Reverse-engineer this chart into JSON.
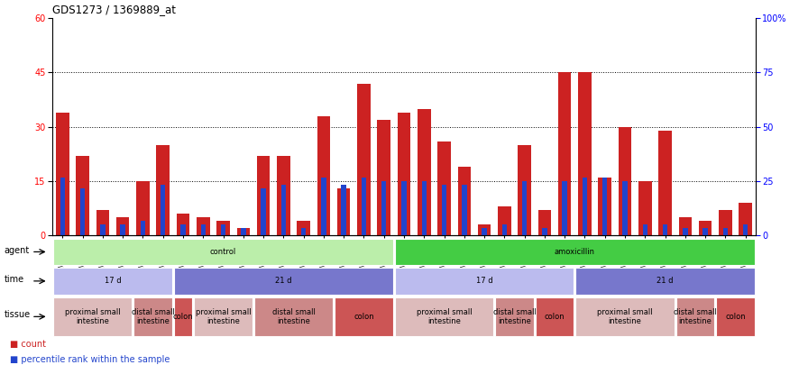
{
  "title": "GDS1273 / 1369889_at",
  "samples": [
    "GSM42559",
    "GSM42561",
    "GSM42563",
    "GSM42553",
    "GSM42555",
    "GSM42557",
    "GSM42548",
    "GSM42550",
    "GSM42560",
    "GSM42562",
    "GSM42564",
    "GSM42554",
    "GSM42556",
    "GSM42558",
    "GSM42549",
    "GSM42551",
    "GSM42552",
    "GSM42541",
    "GSM42543",
    "GSM42546",
    "GSM42534",
    "GSM42536",
    "GSM42539",
    "GSM42527",
    "GSM42529",
    "GSM42532",
    "GSM42542",
    "GSM42544",
    "GSM42547",
    "GSM42535",
    "GSM42537",
    "GSM42540",
    "GSM42528",
    "GSM42530",
    "GSM42533"
  ],
  "count": [
    34,
    22,
    7,
    5,
    15,
    25,
    6,
    5,
    4,
    2,
    22,
    22,
    4,
    33,
    13,
    42,
    32,
    34,
    35,
    26,
    19,
    3,
    8,
    25,
    7,
    45,
    45,
    16,
    30,
    15,
    29,
    5,
    4,
    7,
    9
  ],
  "percentile": [
    16,
    13,
    3,
    3,
    4,
    14,
    3,
    3,
    3,
    2,
    13,
    14,
    2,
    16,
    14,
    16,
    15,
    15,
    15,
    14,
    14,
    2,
    3,
    15,
    2,
    15,
    16,
    16,
    15,
    3,
    3,
    2,
    2,
    2,
    3
  ],
  "bar_color": "#cc2222",
  "percentile_color": "#2244cc",
  "agent_row": [
    {
      "label": "control",
      "start": 0,
      "end": 17,
      "color": "#bbeeaa"
    },
    {
      "label": "amoxicillin",
      "start": 17,
      "end": 35,
      "color": "#44cc44"
    }
  ],
  "time_row": [
    {
      "label": "17 d",
      "start": 0,
      "end": 6,
      "color": "#bbbbee"
    },
    {
      "label": "21 d",
      "start": 6,
      "end": 17,
      "color": "#7777cc"
    },
    {
      "label": "17 d",
      "start": 17,
      "end": 26,
      "color": "#bbbbee"
    },
    {
      "label": "21 d",
      "start": 26,
      "end": 35,
      "color": "#7777cc"
    }
  ],
  "tissue_row": [
    {
      "label": "proximal small\nintestine",
      "start": 0,
      "end": 4,
      "color": "#ddbbbb"
    },
    {
      "label": "distal small\nintestine",
      "start": 4,
      "end": 6,
      "color": "#cc8888"
    },
    {
      "label": "colon",
      "start": 6,
      "end": 7,
      "color": "#cc5555"
    },
    {
      "label": "proximal small\nintestine",
      "start": 7,
      "end": 10,
      "color": "#ddbbbb"
    },
    {
      "label": "distal small\nintestine",
      "start": 10,
      "end": 14,
      "color": "#cc8888"
    },
    {
      "label": "colon",
      "start": 14,
      "end": 17,
      "color": "#cc5555"
    },
    {
      "label": "proximal small\nintestine",
      "start": 17,
      "end": 22,
      "color": "#ddbbbb"
    },
    {
      "label": "distal small\nintestine",
      "start": 22,
      "end": 24,
      "color": "#cc8888"
    },
    {
      "label": "colon",
      "start": 24,
      "end": 26,
      "color": "#cc5555"
    },
    {
      "label": "proximal small\nintestine",
      "start": 26,
      "end": 31,
      "color": "#ddbbbb"
    },
    {
      "label": "distal small\nintestine",
      "start": 31,
      "end": 33,
      "color": "#cc8888"
    },
    {
      "label": "colon",
      "start": 33,
      "end": 35,
      "color": "#cc5555"
    }
  ]
}
